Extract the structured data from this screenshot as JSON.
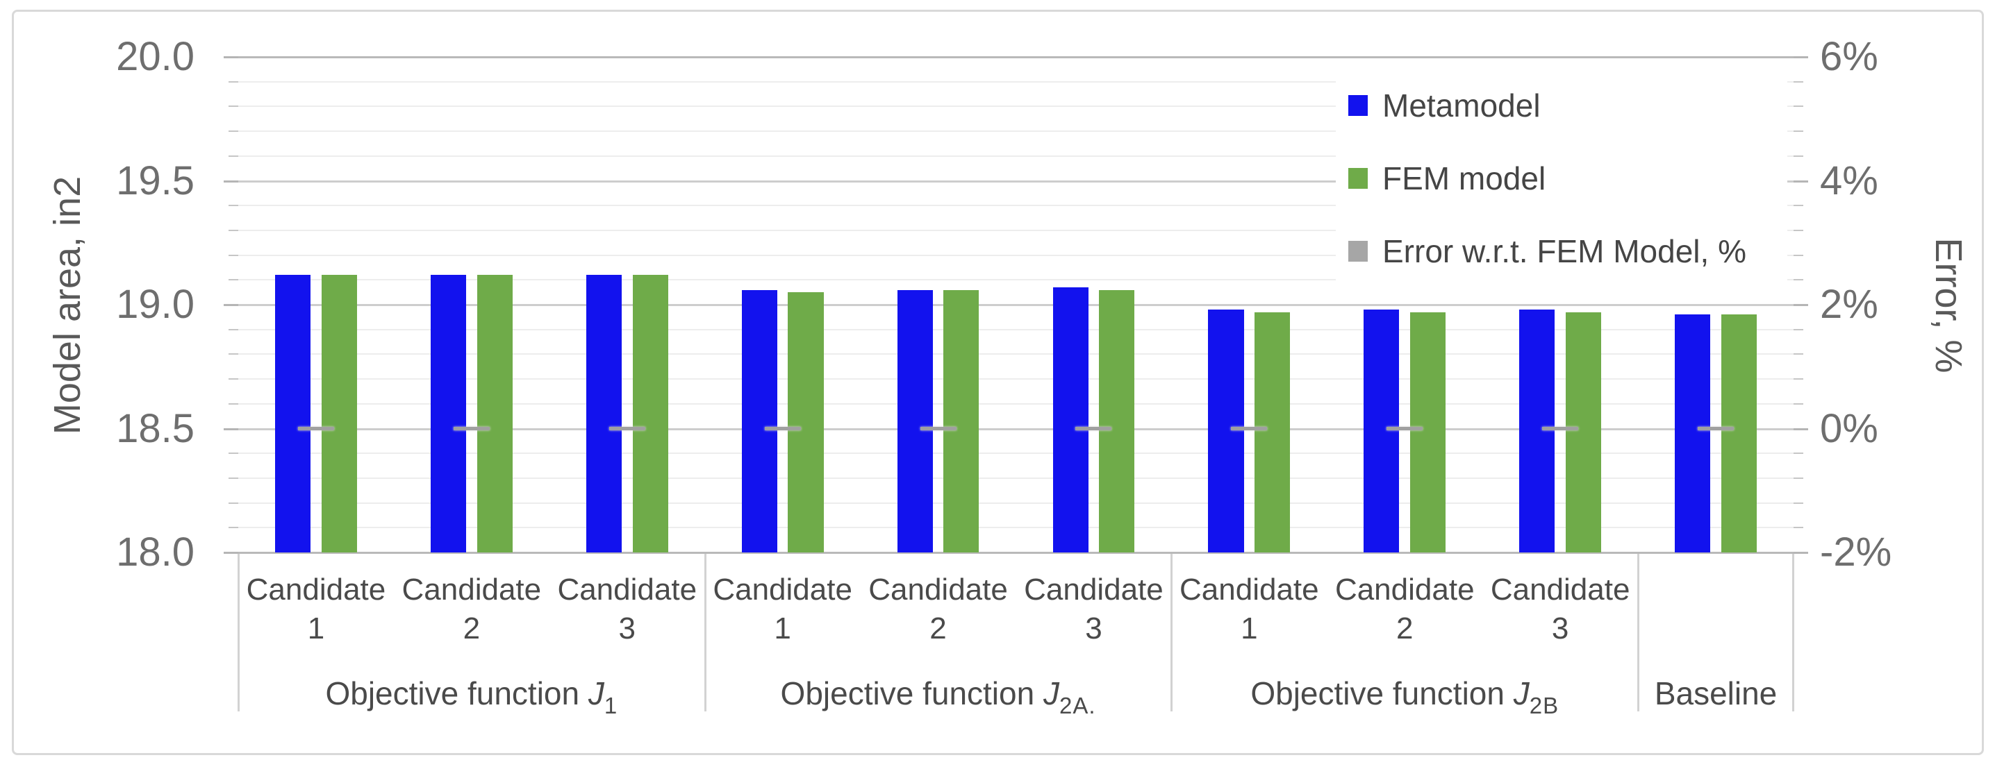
{
  "chart_data": {
    "type": "bar",
    "title": "",
    "left_axis": {
      "label": "Model area, in2",
      "min": 18.0,
      "max": 20.0,
      "major_step": 0.5,
      "minor_step": 0.1,
      "ticks": [
        "20.0",
        "19.5",
        "19.0",
        "18.5",
        "18.0"
      ]
    },
    "right_axis": {
      "label": "Error, %",
      "min": -2,
      "max": 6,
      "ticks": [
        "6%",
        "4%",
        "2%",
        "0%",
        "-2%"
      ]
    },
    "legend": [
      {
        "name": "Metamodel",
        "color": "#1212ee"
      },
      {
        "name": "FEM model",
        "color": "#6fab49"
      },
      {
        "name": "Error w.r.t. FEM Model, %",
        "color": "#a6a6a6"
      }
    ],
    "legend_position": "top-right-inside",
    "grid": "on",
    "series_names": [
      "Metamodel",
      "FEM model",
      "Error w.r.t. FEM Model, %"
    ],
    "groups": [
      {
        "label_base": "Objective function ",
        "label_var": "J",
        "label_sub": "1",
        "candidates": [
          {
            "line1": "Candidate",
            "line2": "1",
            "metamodel": 19.12,
            "fem_model": 19.12,
            "error_pct": 0.0
          },
          {
            "line1": "Candidate",
            "line2": "2",
            "metamodel": 19.12,
            "fem_model": 19.12,
            "error_pct": 0.0
          },
          {
            "line1": "Candidate",
            "line2": "3",
            "metamodel": 19.12,
            "fem_model": 19.12,
            "error_pct": 0.0
          }
        ]
      },
      {
        "label_base": "Objective function ",
        "label_var": "J",
        "label_sub": "2A.",
        "candidates": [
          {
            "line1": "Candidate",
            "line2": "1",
            "metamodel": 19.06,
            "fem_model": 19.05,
            "error_pct": 0.0
          },
          {
            "line1": "Candidate",
            "line2": "2",
            "metamodel": 19.06,
            "fem_model": 19.06,
            "error_pct": 0.0
          },
          {
            "line1": "Candidate",
            "line2": "3",
            "metamodel": 19.07,
            "fem_model": 19.06,
            "error_pct": 0.0
          }
        ]
      },
      {
        "label_base": "Objective function ",
        "label_var": "J",
        "label_sub": "2B",
        "candidates": [
          {
            "line1": "Candidate",
            "line2": "1",
            "metamodel": 18.98,
            "fem_model": 18.97,
            "error_pct": 0.0
          },
          {
            "line1": "Candidate",
            "line2": "2",
            "metamodel": 18.98,
            "fem_model": 18.97,
            "error_pct": 0.0
          },
          {
            "line1": "Candidate",
            "line2": "3",
            "metamodel": 18.98,
            "fem_model": 18.97,
            "error_pct": 0.0
          }
        ]
      },
      {
        "label_base": "Baseline",
        "label_var": "",
        "label_sub": "",
        "candidates": [
          {
            "line1": "",
            "line2": "",
            "metamodel": 18.96,
            "fem_model": 18.96,
            "error_pct": 0.0
          }
        ]
      }
    ],
    "colors": {
      "metamodel_bar": "#1212ee",
      "fem_bar": "#6fab49",
      "error_marker": "#a0a0a0",
      "major_gridline": "#cdcdcd",
      "minor_gridline": "#ededed",
      "axis_text": "#6e6e6e",
      "label_text": "#4a4a4a"
    }
  }
}
